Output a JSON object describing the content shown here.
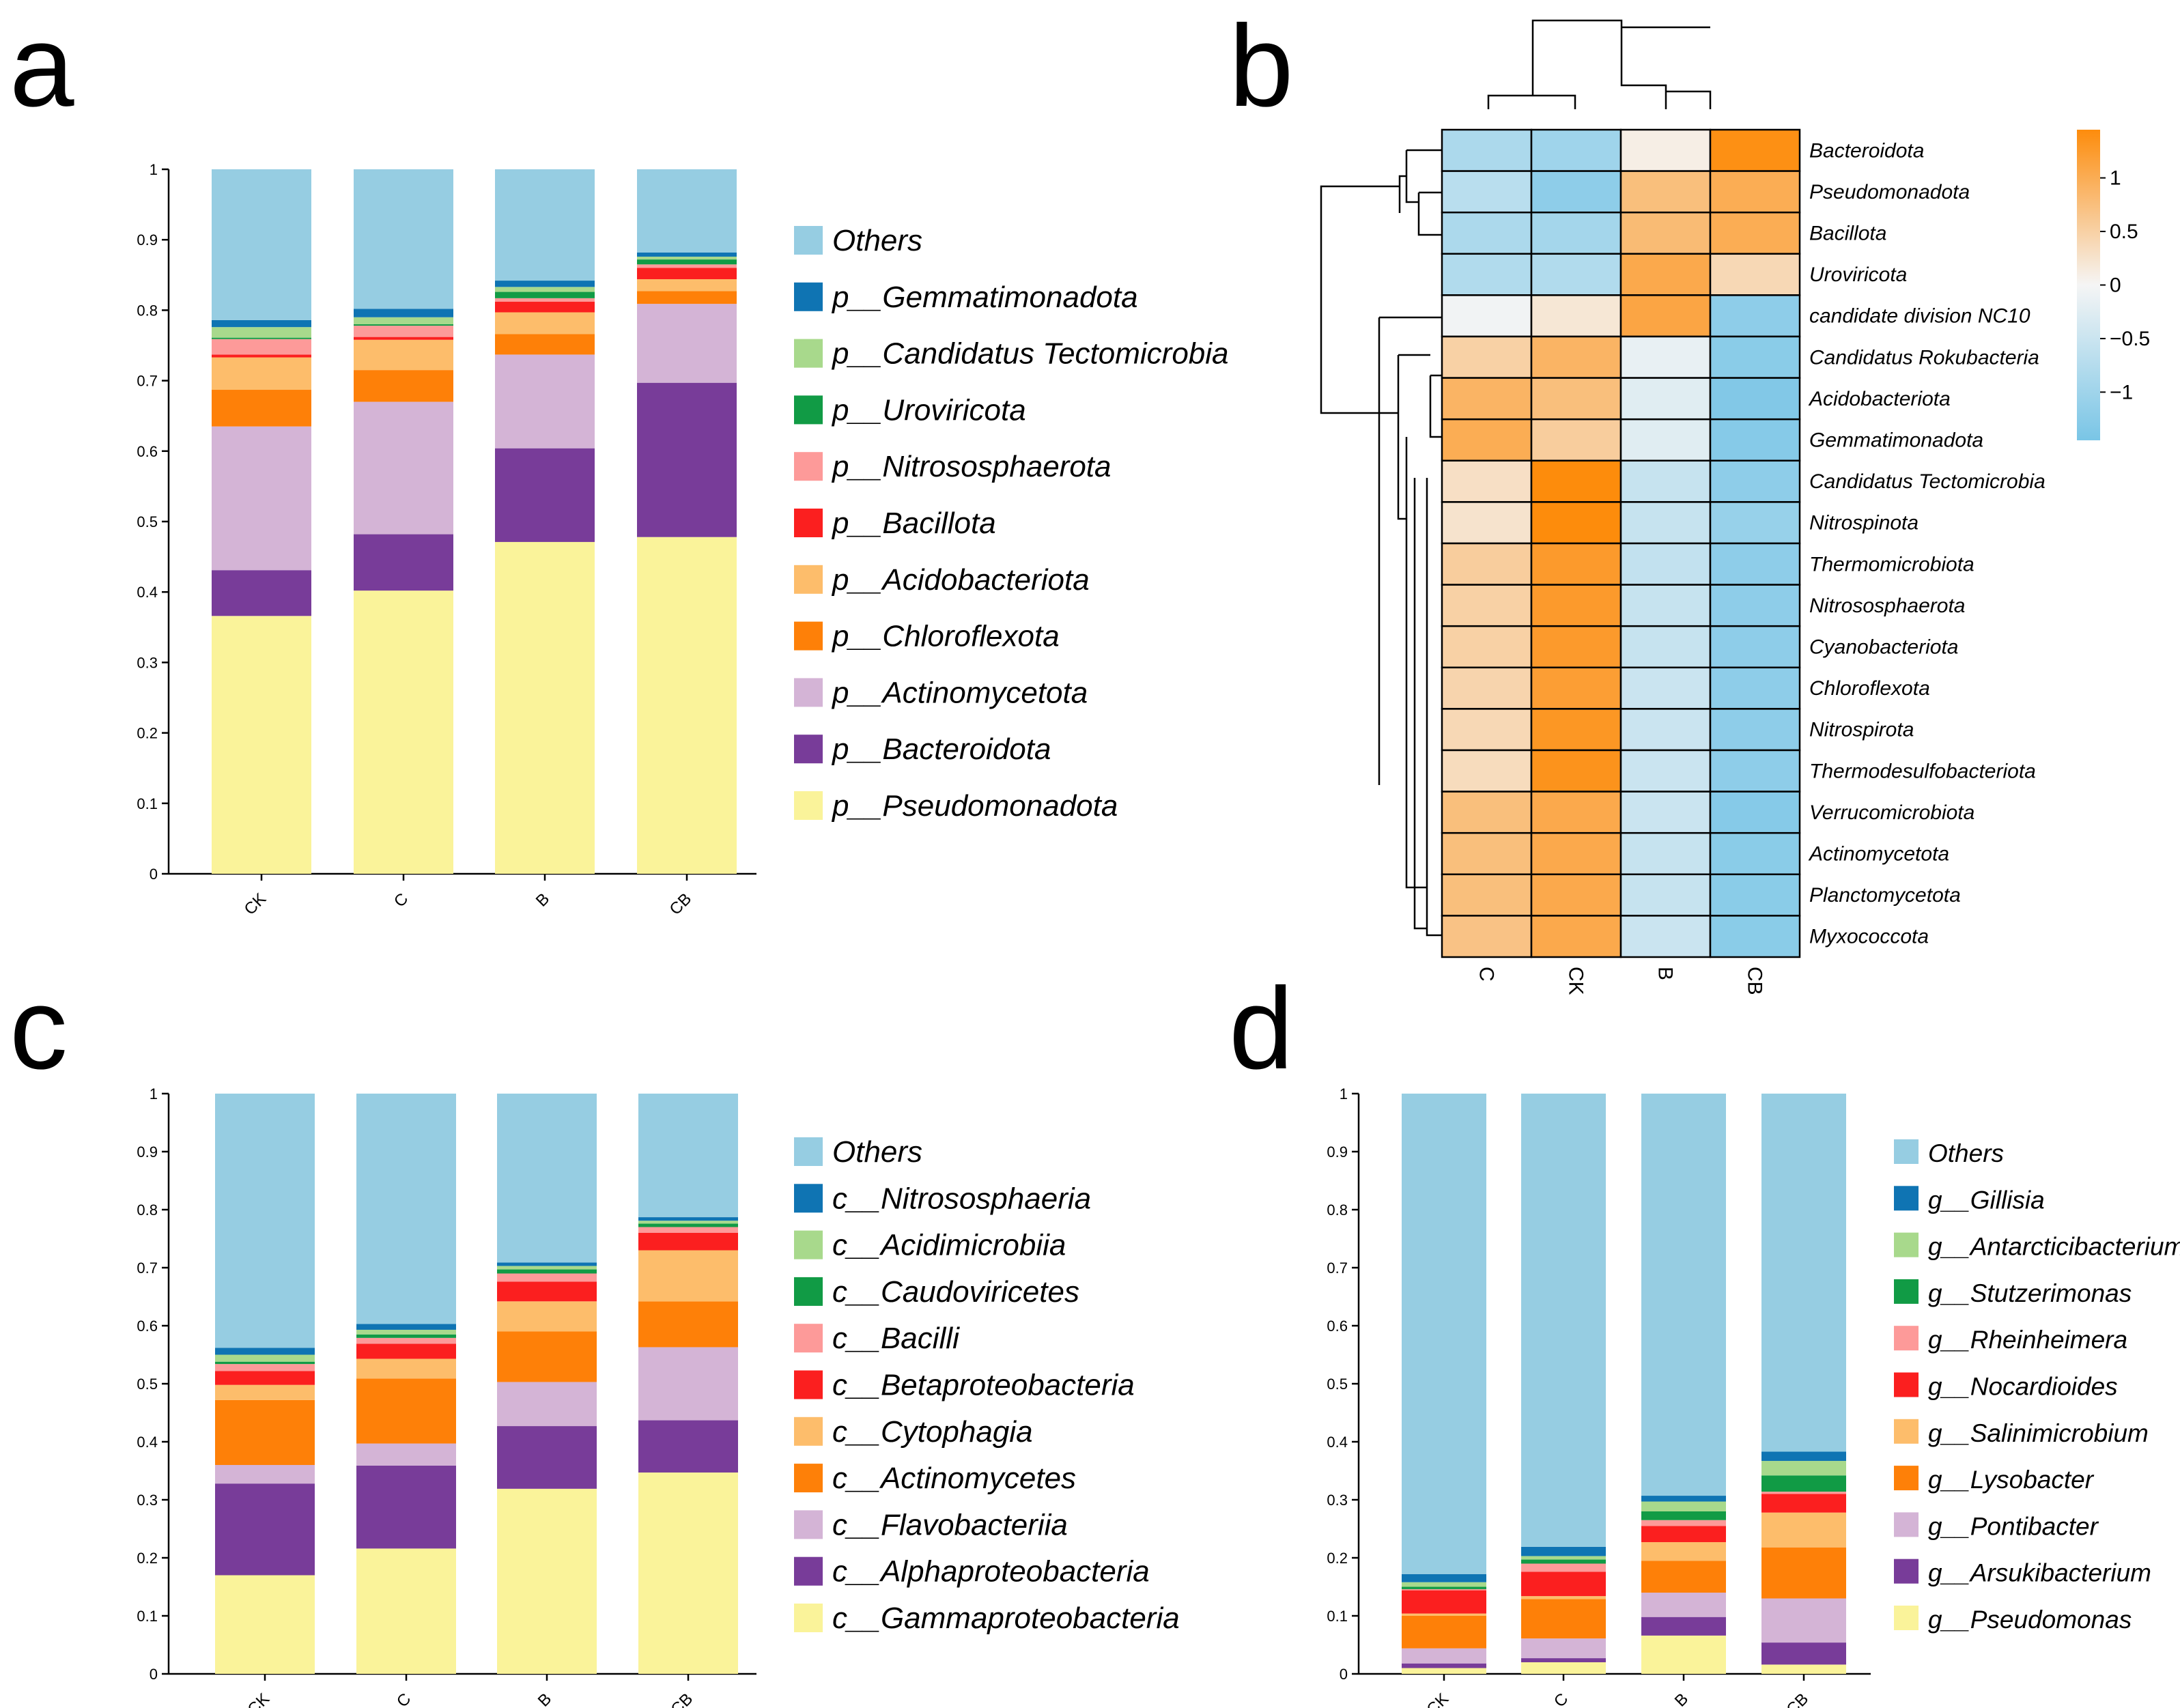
{
  "colors": {
    "Others": "#96cde2",
    "s9": "#0f74b3",
    "s8": "#a8d98c",
    "s7": "#119b45",
    "s6": "#fd9a99",
    "s5": "#fb1f1f",
    "s4": "#fdbd6b",
    "s3": "#fe8008",
    "s2": "#d4b4d6",
    "s1": "#783c99",
    "s0": "#faf39a",
    "hm_low": "#79c5e6",
    "hm_mid": "#f5f5f5",
    "hm_high": "#fd8c0c"
  },
  "panels": {
    "a": "a",
    "b": "b",
    "c": "c",
    "d": "d"
  },
  "chart_data": [
    {
      "id": "a",
      "type": "bar",
      "stacked": true,
      "categories": [
        "CK",
        "C",
        "B",
        "CB"
      ],
      "y_ticks": [
        "0",
        "0.1",
        "0.2",
        "0.3",
        "0.4",
        "0.5",
        "0.6",
        "0.7",
        "0.8",
        "0.9",
        "1"
      ],
      "ylim": [
        0,
        1
      ],
      "legend": [
        "Others",
        "p__Gemmatimonadota",
        "p__Candidatus Tectomicrobia",
        "p__Uroviricota",
        "p__Nitrososphaerota",
        "p__Bacillota",
        "p__Acidobacteriota",
        "p__Chloroflexota",
        "p__Actinomycetota",
        "p__Bacteroidota",
        "p__Pseudomonadota"
      ],
      "series": [
        {
          "name": "p__Pseudomonadota",
          "color_key": "s0",
          "values": [
            0.366,
            0.402,
            0.471,
            0.478
          ]
        },
        {
          "name": "p__Bacteroidota",
          "color_key": "s1",
          "values": [
            0.065,
            0.08,
            0.133,
            0.219
          ]
        },
        {
          "name": "p__Actinomycetota",
          "color_key": "s2",
          "values": [
            0.204,
            0.188,
            0.133,
            0.112
          ]
        },
        {
          "name": "p__Chloroflexota",
          "color_key": "s3",
          "values": [
            0.052,
            0.045,
            0.029,
            0.018
          ]
        },
        {
          "name": "p__Acidobacteriota",
          "color_key": "s4",
          "values": [
            0.046,
            0.043,
            0.031,
            0.017
          ]
        },
        {
          "name": "p__Bacillota",
          "color_key": "s5",
          "values": [
            0.004,
            0.004,
            0.015,
            0.016
          ]
        },
        {
          "name": "p__Nitrososphaerota",
          "color_key": "s6",
          "values": [
            0.022,
            0.016,
            0.005,
            0.005
          ]
        },
        {
          "name": "p__Uroviricota",
          "color_key": "s7",
          "values": [
            0.002,
            0.002,
            0.009,
            0.007
          ]
        },
        {
          "name": "p__Candidatus Tectomicrobia",
          "color_key": "s8",
          "values": [
            0.015,
            0.01,
            0.007,
            0.004
          ]
        },
        {
          "name": "p__Gemmatimonadota",
          "color_key": "s9",
          "values": [
            0.01,
            0.012,
            0.009,
            0.006
          ]
        },
        {
          "name": "Others",
          "color_key": "Others",
          "values": [
            0.214,
            0.198,
            0.158,
            0.118
          ]
        }
      ]
    },
    {
      "id": "b",
      "type": "heatmap",
      "columns": [
        "C",
        "CK",
        "B",
        "CB"
      ],
      "rows": [
        "Bacteroidota",
        "Pseudomonadota",
        "Bacillota",
        "Uroviricota",
        "candidate division NC10",
        "Candidatus Rokubacteria",
        "Acidobacteriota",
        "Gemmatimonadota",
        "Candidatus Tectomicrobia",
        "Nitrospinota",
        "Thermomicrobiota",
        "Nitrososphaerota",
        "Cyanobacteriota",
        "Chloroflexota",
        "Nitrospirota",
        "Thermodesulfobacteriota",
        "Verrucomicrobiota",
        "Actinomycetota",
        "Planctomycetota",
        "Myxococcota"
      ],
      "values": [
        [
          -0.85,
          -1.0,
          0.1,
          1.4
        ],
        [
          -0.7,
          -1.2,
          0.75,
          1.0
        ],
        [
          -0.85,
          -0.95,
          0.8,
          1.0
        ],
        [
          -0.8,
          -0.8,
          1.05,
          0.4
        ],
        [
          -0.05,
          0.2,
          1.1,
          -1.2
        ],
        [
          0.5,
          0.9,
          -0.15,
          -1.25
        ],
        [
          0.9,
          0.75,
          -0.25,
          -1.35
        ],
        [
          1.0,
          0.55,
          -0.25,
          -1.3
        ],
        [
          0.3,
          1.45,
          -0.55,
          -1.2
        ],
        [
          0.25,
          1.45,
          -0.55,
          -1.1
        ],
        [
          0.55,
          1.25,
          -0.6,
          -1.2
        ],
        [
          0.5,
          1.25,
          -0.55,
          -1.2
        ],
        [
          0.5,
          1.25,
          -0.55,
          -1.2
        ],
        [
          0.45,
          1.2,
          -0.5,
          -1.2
        ],
        [
          0.4,
          1.3,
          -0.5,
          -1.2
        ],
        [
          0.35,
          1.35,
          -0.5,
          -1.2
        ],
        [
          0.75,
          1.05,
          -0.5,
          -1.3
        ],
        [
          0.75,
          1.05,
          -0.55,
          -1.25
        ],
        [
          0.75,
          1.05,
          -0.55,
          -1.25
        ],
        [
          0.7,
          1.05,
          -0.5,
          -1.25
        ]
      ],
      "colorbar_ticks": [
        "1",
        "0.5",
        "0",
        "−0.5",
        "−1"
      ],
      "colorbar_values": [
        1,
        0.5,
        0,
        -0.5,
        -1
      ],
      "vlim": [
        -1.45,
        1.45
      ]
    },
    {
      "id": "c",
      "type": "bar",
      "stacked": true,
      "categories": [
        "CK",
        "C",
        "B",
        "CB"
      ],
      "y_ticks": [
        "0",
        "0.1",
        "0.2",
        "0.3",
        "0.4",
        "0.5",
        "0.6",
        "0.7",
        "0.8",
        "0.9",
        "1"
      ],
      "ylim": [
        0,
        1
      ],
      "legend": [
        "Others",
        "c__Nitrososphaeria",
        "c__Acidimicrobiia",
        "c__Caudoviricetes",
        "c__Bacilli",
        "c__Betaproteobacteria",
        "c__Cytophagia",
        "c__Actinomycetes",
        "c__Flavobacteriia",
        "c__Alphaproteobacteria",
        "c__Gammaproteobacteria"
      ],
      "series": [
        {
          "name": "c__Gammaproteobacteria",
          "color_key": "s0",
          "values": [
            0.17,
            0.216,
            0.319,
            0.347
          ]
        },
        {
          "name": "c__Alphaproteobacteria",
          "color_key": "s1",
          "values": [
            0.158,
            0.143,
            0.108,
            0.09
          ]
        },
        {
          "name": "c__Flavobacteriia",
          "color_key": "s2",
          "values": [
            0.032,
            0.038,
            0.076,
            0.126
          ]
        },
        {
          "name": "c__Actinomycetes",
          "color_key": "s3",
          "values": [
            0.112,
            0.112,
            0.087,
            0.079
          ]
        },
        {
          "name": "c__Cytophagia",
          "color_key": "s4",
          "values": [
            0.026,
            0.034,
            0.052,
            0.088
          ]
        },
        {
          "name": "c__Betaproteobacteria",
          "color_key": "s5",
          "values": [
            0.024,
            0.026,
            0.034,
            0.03
          ]
        },
        {
          "name": "c__Bacilli",
          "color_key": "s6",
          "values": [
            0.012,
            0.01,
            0.014,
            0.01
          ]
        },
        {
          "name": "c__Caudoviricetes",
          "color_key": "s7",
          "values": [
            0.004,
            0.006,
            0.007,
            0.006
          ]
        },
        {
          "name": "c__Acidimicrobiia",
          "color_key": "s8",
          "values": [
            0.012,
            0.008,
            0.006,
            0.005
          ]
        },
        {
          "name": "c__Nitrososphaeria",
          "color_key": "s9",
          "values": [
            0.012,
            0.01,
            0.006,
            0.006
          ]
        },
        {
          "name": "Others",
          "color_key": "Others",
          "values": [
            0.438,
            0.397,
            0.291,
            0.213
          ]
        }
      ]
    },
    {
      "id": "d",
      "type": "bar",
      "stacked": true,
      "categories": [
        "CK",
        "C",
        "B",
        "CB"
      ],
      "y_ticks": [
        "0",
        "0.1",
        "0.2",
        "0.3",
        "0.4",
        "0.5",
        "0.6",
        "0.7",
        "0.8",
        "0.9",
        "1"
      ],
      "ylim": [
        0,
        1
      ],
      "legend": [
        "Others",
        "g__Gillisia",
        "g__Antarcticibacterium",
        "g__Stutzerimonas",
        "g__Rheinheimera",
        "g__Nocardioides",
        "g__Salinimicrobium",
        "g__Lysobacter",
        "g__Pontibacter",
        "g__Arsukibacterium",
        "g__Pseudomonas"
      ],
      "series": [
        {
          "name": "g__Pseudomonas",
          "color_key": "s0",
          "values": [
            0.01,
            0.02,
            0.066,
            0.016
          ]
        },
        {
          "name": "g__Arsukibacterium",
          "color_key": "s1",
          "values": [
            0.008,
            0.007,
            0.032,
            0.038
          ]
        },
        {
          "name": "g__Pontibacter",
          "color_key": "s2",
          "values": [
            0.026,
            0.034,
            0.042,
            0.076
          ]
        },
        {
          "name": "g__Lysobacter",
          "color_key": "s3",
          "values": [
            0.056,
            0.068,
            0.055,
            0.088
          ]
        },
        {
          "name": "g__Salinimicrobium",
          "color_key": "s4",
          "values": [
            0.004,
            0.005,
            0.032,
            0.06
          ]
        },
        {
          "name": "g__Nocardioides",
          "color_key": "s5",
          "values": [
            0.04,
            0.042,
            0.028,
            0.032
          ]
        },
        {
          "name": "g__Rheinheimera",
          "color_key": "s6",
          "values": [
            0.002,
            0.014,
            0.01,
            0.004
          ]
        },
        {
          "name": "g__Stutzerimonas",
          "color_key": "s7",
          "values": [
            0.004,
            0.007,
            0.015,
            0.028
          ]
        },
        {
          "name": "g__Antarcticibacterium",
          "color_key": "s8",
          "values": [
            0.008,
            0.006,
            0.017,
            0.025
          ]
        },
        {
          "name": "g__Gillisia",
          "color_key": "s9",
          "values": [
            0.014,
            0.016,
            0.01,
            0.016
          ]
        },
        {
          "name": "Others",
          "color_key": "Others",
          "values": [
            0.828,
            0.781,
            0.693,
            0.617
          ]
        }
      ]
    }
  ]
}
